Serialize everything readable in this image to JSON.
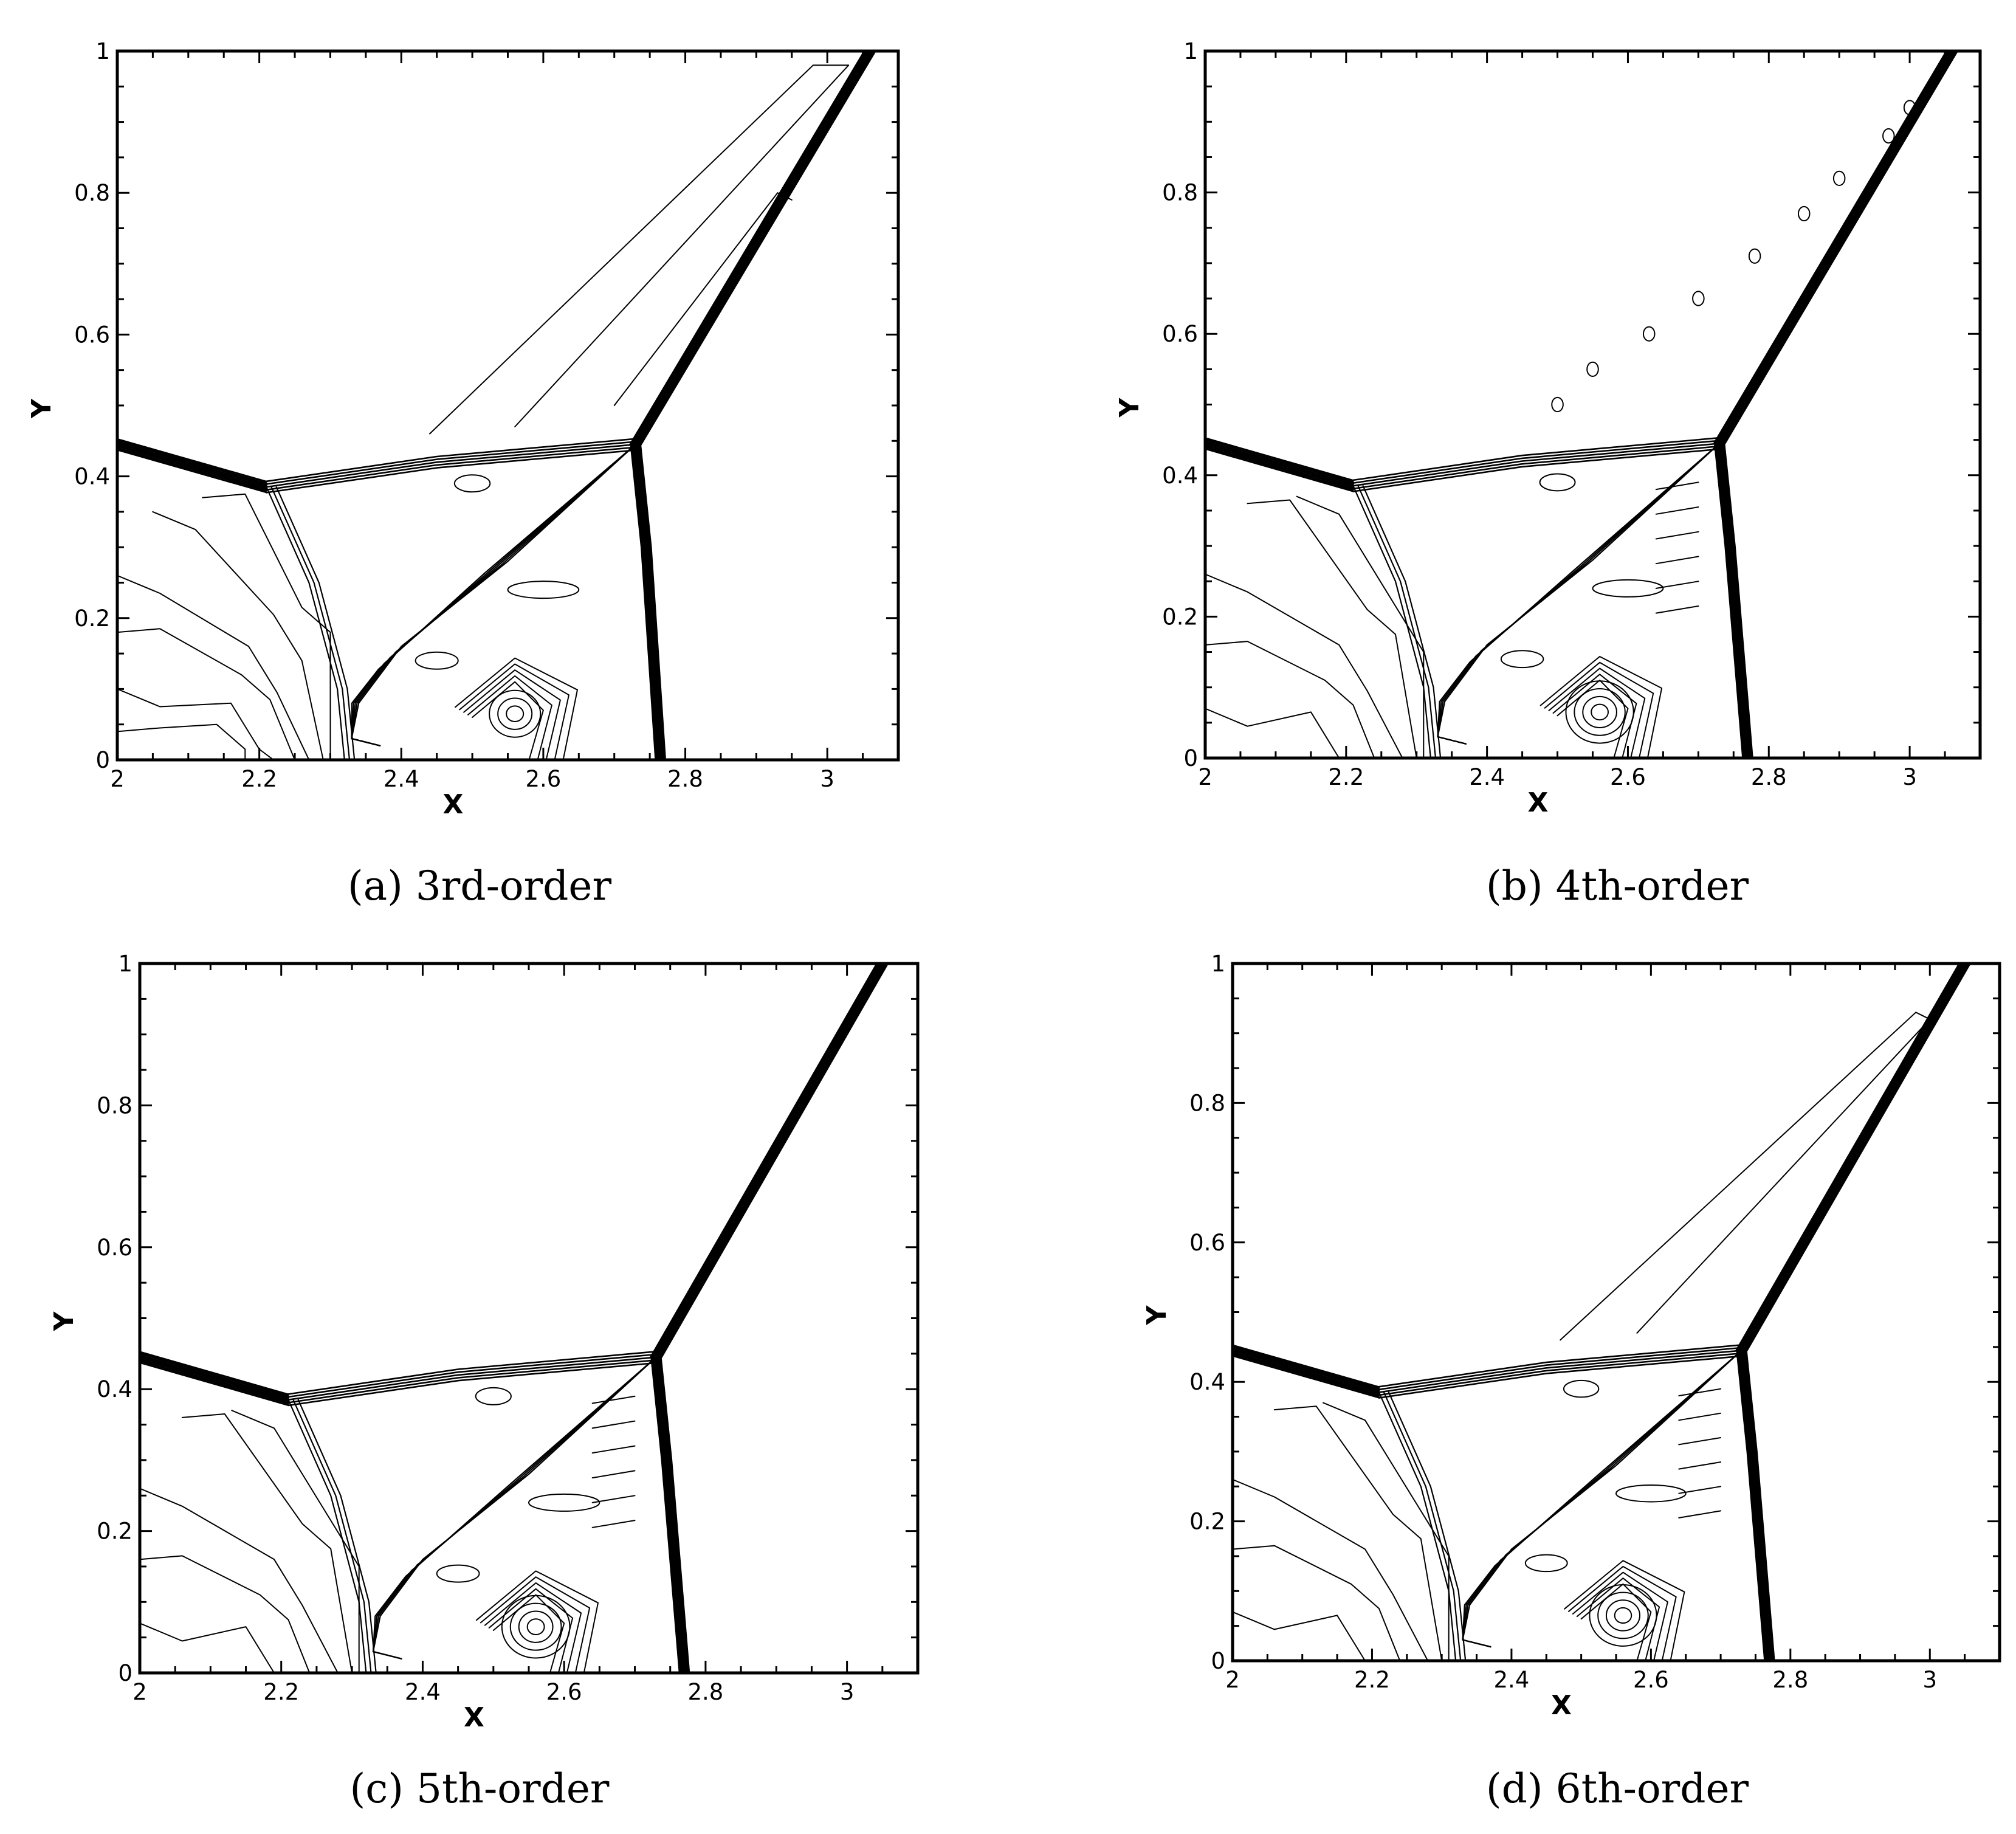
{
  "chart_data": [
    {
      "type": "contour",
      "caption": "(a) 3rd-order",
      "xlabel": "X",
      "ylabel": "Y",
      "xlim": [
        2,
        3.1
      ],
      "ylim": [
        0,
        1
      ],
      "xticks": [
        "2",
        "2.2",
        "2.4",
        "2.6",
        "2.8",
        "3"
      ],
      "yticks": [
        "0",
        "0.2",
        "0.4",
        "0.6",
        "0.8",
        "1"
      ],
      "grid": false
    },
    {
      "type": "contour",
      "caption": "(b) 4th-order",
      "xlabel": "X",
      "ylabel": "Y",
      "xlim": [
        2,
        3.1
      ],
      "ylim": [
        0,
        1
      ],
      "xticks": [
        "2",
        "2.2",
        "2.4",
        "2.6",
        "2.8",
        "3"
      ],
      "yticks": [
        "0",
        "0.2",
        "0.4",
        "0.6",
        "0.8",
        "1"
      ],
      "grid": false
    },
    {
      "type": "contour",
      "caption": "(c) 5th-order",
      "xlabel": "X",
      "ylabel": "Y",
      "xlim": [
        2,
        3.1
      ],
      "ylim": [
        0,
        1
      ],
      "xticks": [
        "2",
        "2.2",
        "2.4",
        "2.6",
        "2.8",
        "3"
      ],
      "yticks": [
        "0",
        "0.2",
        "0.4",
        "0.6",
        "0.8",
        "1"
      ],
      "grid": false
    },
    {
      "type": "contour",
      "caption": "(d) 6th-order",
      "xlabel": "X",
      "ylabel": "Y",
      "xlim": [
        2,
        3.1
      ],
      "ylim": [
        0,
        1
      ],
      "xticks": [
        "2",
        "2.2",
        "2.4",
        "2.6",
        "2.8",
        "3"
      ],
      "yticks": [
        "0",
        "0.2",
        "0.4",
        "0.6",
        "0.8",
        "1"
      ],
      "grid": false
    }
  ]
}
